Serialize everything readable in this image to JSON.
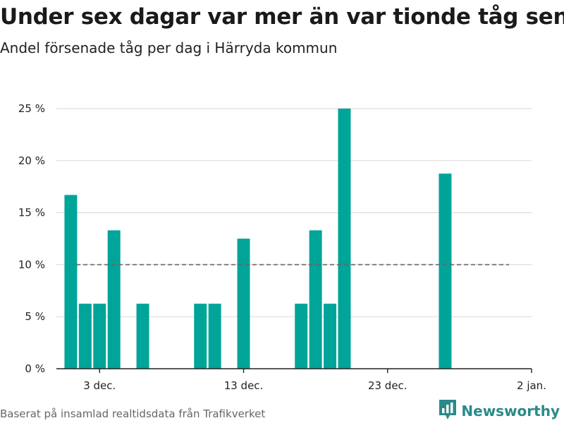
{
  "header": {
    "title": "Under sex dagar var mer än var tionde tåg sent",
    "subtitle": "Andel försenade tåg per dag i Härryda kommun"
  },
  "footer": {
    "source": "Baserat på insamlad realtidsdata från Trafikverket",
    "brand": "Newsworthy",
    "brand_icon": "bar-chart-logo-icon"
  },
  "colors": {
    "bar": "#00a499",
    "grid": "#dddddd",
    "reference_line": "#666666",
    "brand": "#2a8a8a"
  },
  "chart_data": {
    "type": "bar",
    "title": "Under sex dagar var mer än var tionde tåg sent",
    "subtitle": "Andel försenade tåg per dag i Härryda kommun",
    "ylabel": "",
    "xlabel": "",
    "ylim": [
      0,
      25
    ],
    "yticks": [
      0,
      5,
      10,
      15,
      20,
      25
    ],
    "ytick_labels": [
      "0 %",
      "5 %",
      "10 %",
      "15 %",
      "20 %",
      "25 %"
    ],
    "xlim": [
      "2020-11-30",
      "2021-01-02"
    ],
    "xticks": [
      "2020-12-03",
      "2020-12-13",
      "2020-12-23",
      "2021-01-02"
    ],
    "xtick_labels": [
      "3 dec.",
      "13 dec.",
      "23 dec.",
      "2 jan."
    ],
    "reference_line": {
      "value": 10,
      "style": "dashed"
    },
    "grid": true,
    "x": [
      "2020-12-01",
      "2020-12-02",
      "2020-12-03",
      "2020-12-04",
      "2020-12-06",
      "2020-12-10",
      "2020-12-11",
      "2020-12-13",
      "2020-12-17",
      "2020-12-18",
      "2020-12-19",
      "2020-12-20",
      "2020-12-27"
    ],
    "values": [
      16.7,
      6.25,
      6.25,
      13.3,
      6.25,
      6.25,
      6.25,
      12.5,
      6.25,
      13.3,
      6.25,
      25.0,
      18.75
    ]
  }
}
